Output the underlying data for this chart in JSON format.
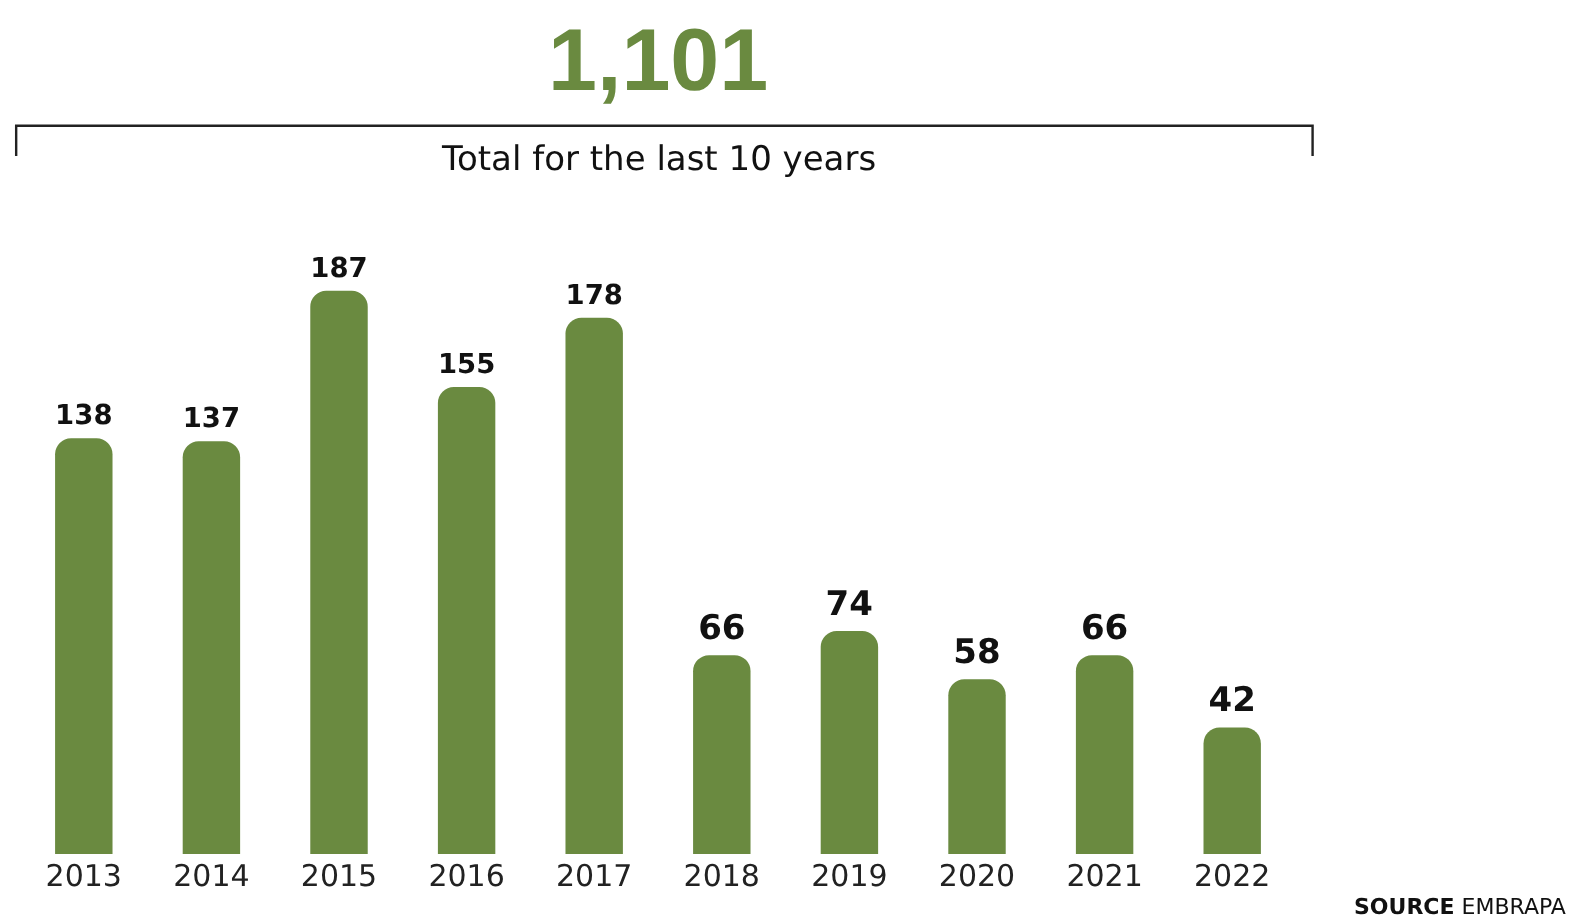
{
  "chart_data": {
    "type": "bar",
    "title": "1,101",
    "subtitle": "Total for the last 10 years",
    "categories": [
      "2013",
      "2014",
      "2015",
      "2016",
      "2017",
      "2018",
      "2019",
      "2020",
      "2021",
      "2022"
    ],
    "values": [
      138,
      137,
      187,
      155,
      178,
      66,
      74,
      58,
      66,
      42
    ],
    "color": "#6a8a40",
    "data_labels": true,
    "tick_labels": "x",
    "annotations": [
      "SOURCE EMBRAPA"
    ]
  }
}
